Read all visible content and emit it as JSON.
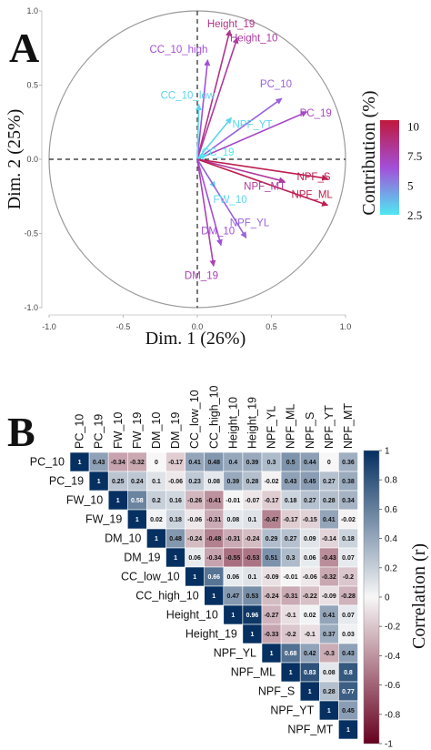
{
  "panels": {
    "a": {
      "letter": "A"
    },
    "b": {
      "letter": "B"
    }
  },
  "colors": {
    "grad_low": "#4ee8f2",
    "grad_mid": "#a34fd9",
    "grad_high": "#c0183b",
    "corr_neg": "#67001f",
    "corr_zero": "#f7f7f7",
    "corr_pos": "#053061"
  },
  "chart_data": [
    {
      "type": "scatter",
      "subtype": "pca-variable-correlation-circle",
      "xlabel": "Dim. 1 (26%)",
      "ylabel": "Dim. 2 (25%)",
      "xlim": [
        -1.0,
        1.0
      ],
      "ylim": [
        -1.0,
        1.0
      ],
      "x_ticks": [
        "-1.0",
        "-0.5",
        "0.0",
        "0.5",
        "1.0"
      ],
      "y_ticks": [
        "1.0",
        "0.5",
        "0.0",
        "-0.5",
        "-1.0"
      ],
      "grid": false,
      "legend": {
        "title": "Contribution (%)",
        "ticks": [
          "10",
          "7.5",
          "5",
          "2.5"
        ],
        "range": [
          2.5,
          10.5
        ],
        "placement": "right"
      },
      "series": [
        {
          "label": "Height_19",
          "x": 0.22,
          "y": 0.87,
          "contribution": 8.5
        },
        {
          "label": "Height_10",
          "x": 0.27,
          "y": 0.82,
          "contribution": 8.0
        },
        {
          "label": "CC_10_high",
          "x": 0.07,
          "y": 0.67,
          "contribution": 6.5
        },
        {
          "label": "CC_10_low",
          "x": 0.01,
          "y": 0.37,
          "contribution": 3.0
        },
        {
          "label": "PC_10",
          "x": 0.57,
          "y": 0.41,
          "contribution": 6.0
        },
        {
          "label": "NPF_YT",
          "x": 0.23,
          "y": 0.28,
          "contribution": 3.0
        },
        {
          "label": "PC_19",
          "x": 0.74,
          "y": 0.32,
          "contribution": 7.0
        },
        {
          "label": "CC_19",
          "x": 0.06,
          "y": 0.03,
          "contribution": 2.5
        },
        {
          "label": "NPF_S",
          "x": 0.88,
          "y": -0.13,
          "contribution": 10.0
        },
        {
          "label": "NPF_MT",
          "x": 0.59,
          "y": -0.15,
          "contribution": 8.0
        },
        {
          "label": "NPF_ML",
          "x": 0.88,
          "y": -0.31,
          "contribution": 10.0
        },
        {
          "label": "FW_10",
          "x": 0.12,
          "y": -0.19,
          "contribution": 3.0
        },
        {
          "label": "NPF_YL",
          "x": 0.33,
          "y": -0.53,
          "contribution": 6.0
        },
        {
          "label": "DM_10",
          "x": 0.16,
          "y": -0.58,
          "contribution": 6.5
        },
        {
          "label": "DM_19",
          "x": 0.11,
          "y": -0.72,
          "contribution": 7.5
        }
      ]
    },
    {
      "type": "heatmap",
      "subtype": "correlation-matrix-upper",
      "legend": {
        "title": "Correlation (r)",
        "ticks": [
          "1",
          "0.8",
          "0.6",
          "0.4",
          "0.2",
          "0",
          "-0.2",
          "-0.4",
          "-0.6",
          "-0.8",
          "-1"
        ],
        "range": [
          -1,
          1
        ],
        "placement": "right"
      },
      "variables": [
        "PC_10",
        "PC_19",
        "FW_10",
        "FW_19",
        "DM_10",
        "DM_19",
        "CC_low_10",
        "CC_high_10",
        "Height_10",
        "Height_19",
        "NPF_YL",
        "NPF_ML",
        "NPF_S",
        "NPF_YT",
        "NPF_MT"
      ],
      "rows": [
        [
          "1",
          "0.43",
          "-0.34",
          "-0.32",
          "0",
          "-0.17",
          "0.41",
          "0.48",
          "0.4",
          "0.39",
          "0.3",
          "0.5",
          "0.44",
          "0",
          "0.36"
        ],
        [
          "",
          "1",
          "0.25",
          "0.24",
          "0.1",
          "-0.06",
          "0.23",
          "0.08",
          "0.39",
          "0.28",
          "-0.02",
          "0.43",
          "0.45",
          "0.27",
          "0.38"
        ],
        [
          "",
          "",
          "1",
          "0.58",
          "0.2",
          "0.16",
          "-0.26",
          "-0.41",
          "-0.01",
          "-0.07",
          "-0.17",
          "0.18",
          "0.27",
          "0.28",
          "0.34"
        ],
        [
          "",
          "",
          "",
          "1",
          "0.02",
          "0.18",
          "-0.06",
          "-0.31",
          "0.08",
          "0.1",
          "-0.47",
          "-0.17",
          "-0.15",
          "0.41",
          "-0.02"
        ],
        [
          "",
          "",
          "",
          "",
          "1",
          "0.48",
          "-0.24",
          "-0.48",
          "-0.31",
          "-0.24",
          "0.29",
          "0.27",
          "0.09",
          "-0.14",
          "0.18"
        ],
        [
          "",
          "",
          "",
          "",
          "",
          "1",
          "0.06",
          "-0.34",
          "-0.55",
          "-0.53",
          "0.51",
          "0.3",
          "0.06",
          "-0.43",
          "0.07"
        ],
        [
          "",
          "",
          "",
          "",
          "",
          "",
          "1",
          "0.66",
          "0.06",
          "0.1",
          "-0.09",
          "-0.01",
          "-0.06",
          "-0.32",
          "-0.2"
        ],
        [
          "",
          "",
          "",
          "",
          "",
          "",
          "",
          "1",
          "0.47",
          "0.53",
          "-0.24",
          "-0.31",
          "-0.22",
          "-0.09",
          "-0.28"
        ],
        [
          "",
          "",
          "",
          "",
          "",
          "",
          "",
          "",
          "1",
          "0.96",
          "-0.27",
          "-0.1",
          "0.02",
          "0.41",
          "0.07"
        ],
        [
          "",
          "",
          "",
          "",
          "",
          "",
          "",
          "",
          "",
          "1",
          "-0.33",
          "-0.2",
          "-0.1",
          "0.37",
          "0.03"
        ],
        [
          "",
          "",
          "",
          "",
          "",
          "",
          "",
          "",
          "",
          "",
          "1",
          "0.68",
          "0.42",
          "-0.3",
          "0.43"
        ],
        [
          "",
          "",
          "",
          "",
          "",
          "",
          "",
          "",
          "",
          "",
          "",
          "1",
          "0.83",
          "0.08",
          "0.8"
        ],
        [
          "",
          "",
          "",
          "",
          "",
          "",
          "",
          "",
          "",
          "",
          "",
          "",
          "1",
          "0.28",
          "0.77"
        ],
        [
          "",
          "",
          "",
          "",
          "",
          "",
          "",
          "",
          "",
          "",
          "",
          "",
          "",
          "1",
          "0.45"
        ],
        [
          "",
          "",
          "",
          "",
          "",
          "",
          "",
          "",
          "",
          "",
          "",
          "",
          "",
          "",
          "1"
        ]
      ]
    }
  ]
}
